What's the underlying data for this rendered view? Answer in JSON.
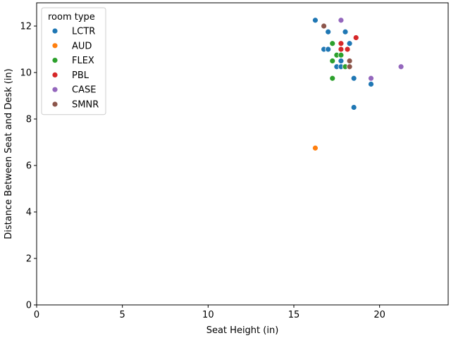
{
  "chart_data": {
    "type": "scatter",
    "xlabel": "Seat Height (in)",
    "ylabel": "Distance Between Seat and Desk (in)",
    "xlim": [
      0,
      24
    ],
    "ylim": [
      0,
      13
    ],
    "xticks": [
      0,
      5,
      10,
      15,
      20
    ],
    "yticks": [
      0,
      2,
      4,
      6,
      8,
      10,
      12
    ],
    "grid": false,
    "legend": {
      "title": "room type",
      "placement": "top-left"
    },
    "series": [
      {
        "name": "LCTR",
        "color": "#1f77b4",
        "points": [
          [
            16.25,
            12.25
          ],
          [
            17.0,
            11.75
          ],
          [
            18.0,
            11.75
          ],
          [
            16.75,
            11.0
          ],
          [
            17.0,
            11.0
          ],
          [
            18.25,
            11.25
          ],
          [
            17.5,
            10.25
          ],
          [
            17.75,
            10.5
          ],
          [
            17.75,
            10.25
          ],
          [
            18.5,
            9.75
          ],
          [
            19.5,
            9.5
          ],
          [
            18.5,
            8.5
          ]
        ]
      },
      {
        "name": "AUD",
        "color": "#ff7f0e",
        "points": [
          [
            16.25,
            6.75
          ]
        ]
      },
      {
        "name": "FLEX",
        "color": "#2ca02c",
        "points": [
          [
            17.25,
            11.25
          ],
          [
            17.5,
            10.75
          ],
          [
            17.75,
            10.75
          ],
          [
            17.25,
            10.5
          ],
          [
            18.0,
            10.25
          ],
          [
            17.25,
            9.75
          ]
        ]
      },
      {
        "name": "PBL",
        "color": "#d62728",
        "points": [
          [
            18.625,
            11.5
          ],
          [
            17.75,
            11.25
          ],
          [
            17.75,
            11.0
          ],
          [
            18.125,
            11.0
          ]
        ]
      },
      {
        "name": "CASE",
        "color": "#9467bd",
        "points": [
          [
            17.75,
            12.25
          ],
          [
            21.25,
            10.25
          ],
          [
            19.5,
            9.75
          ]
        ]
      },
      {
        "name": "SMNR",
        "color": "#8c564b",
        "points": [
          [
            16.75,
            12.0
          ],
          [
            18.25,
            10.5
          ],
          [
            18.25,
            10.25
          ]
        ]
      }
    ]
  }
}
